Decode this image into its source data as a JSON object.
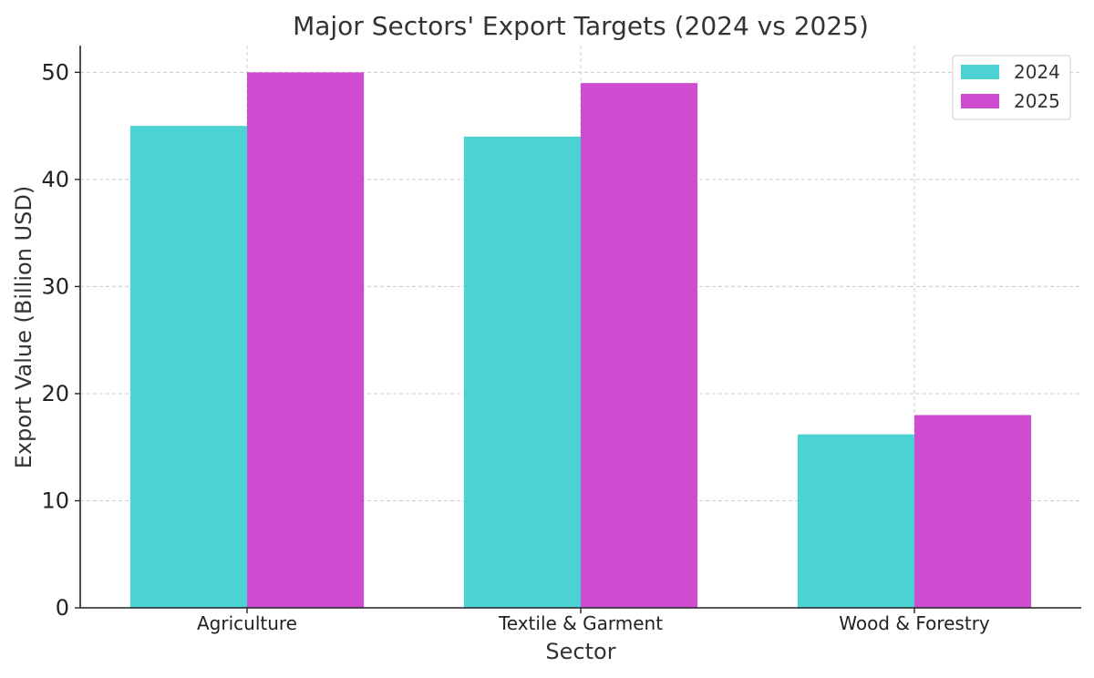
{
  "chart_data": {
    "type": "bar",
    "title": "Major Sectors' Export Targets (2024 vs 2025)",
    "xlabel": "Sector",
    "ylabel": "Export Value (Billion USD)",
    "categories": [
      "Agriculture",
      "Textile & Garment",
      "Wood & Forestry"
    ],
    "series": [
      {
        "name": "2024",
        "color": "#4dd2d4",
        "values": [
          45,
          44,
          16.2
        ]
      },
      {
        "name": "2025",
        "color": "#cf4cd0",
        "values": [
          50,
          49,
          18
        ]
      }
    ],
    "ylim": [
      0,
      52.5
    ],
    "yticks": [
      0,
      10,
      20,
      30,
      40,
      50
    ],
    "grid": true,
    "legend_position": "top-right"
  }
}
